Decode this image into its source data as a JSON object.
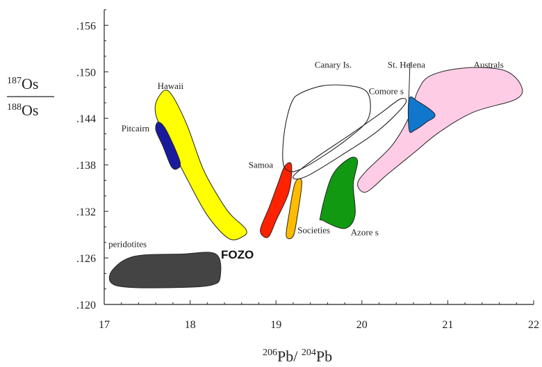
{
  "chart_data": {
    "type": "scatter",
    "title": "",
    "xlabel_parts": {
      "sup1": "206",
      "el1": "Pb",
      "sep": "/ ",
      "sup2": "204",
      "el2": "Pb"
    },
    "ylabel_parts": {
      "num_sup": "187",
      "num_el": "Os",
      "den_sup": "188",
      "den_el": "Os"
    },
    "xlim": [
      17,
      22
    ],
    "ylim": [
      0.12,
      0.158
    ],
    "x_ticks": [
      17,
      18,
      19,
      20,
      21,
      22
    ],
    "x_tick_labels": [
      "17",
      "18",
      "19",
      "20",
      "21",
      "22"
    ],
    "y_ticks": [
      0.12,
      0.126,
      0.132,
      0.138,
      0.144,
      0.15,
      0.156
    ],
    "y_tick_labels": [
      ".120",
      ".126",
      ".132",
      ".138",
      ".144",
      ".150",
      ".156"
    ],
    "grid": false,
    "fields": [
      {
        "name": "Hawaii",
        "color": "#ffff00",
        "outline": [
          [
            17.62,
            0.1465
          ],
          [
            17.75,
            0.1475
          ],
          [
            17.95,
            0.1435
          ],
          [
            18.15,
            0.1375
          ],
          [
            18.35,
            0.1335
          ],
          [
            18.48,
            0.1315
          ],
          [
            18.65,
            0.1297
          ],
          [
            18.62,
            0.1288
          ],
          [
            18.45,
            0.1285
          ],
          [
            18.2,
            0.1315
          ],
          [
            17.95,
            0.1365
          ],
          [
            17.72,
            0.1415
          ],
          [
            17.6,
            0.1445
          ]
        ]
      },
      {
        "name": "Pitcairn",
        "color": "#1a1a9e",
        "outline": [
          [
            17.63,
            0.1435
          ],
          [
            17.72,
            0.1425
          ],
          [
            17.88,
            0.1385
          ],
          [
            17.85,
            0.1375
          ],
          [
            17.78,
            0.1378
          ],
          [
            17.68,
            0.1405
          ],
          [
            17.6,
            0.1425
          ]
        ]
      },
      {
        "name": "peridotites",
        "color": "#444444",
        "outline": [
          [
            17.1,
            0.1245
          ],
          [
            17.35,
            0.1262
          ],
          [
            17.9,
            0.1265
          ],
          [
            18.3,
            0.1265
          ],
          [
            18.35,
            0.1235
          ],
          [
            18.25,
            0.1225
          ],
          [
            17.9,
            0.1222
          ],
          [
            17.3,
            0.1222
          ],
          [
            17.08,
            0.1228
          ]
        ]
      },
      {
        "name": "Samoa",
        "color": "#ff2200",
        "outline": [
          [
            19.1,
            0.1378
          ],
          [
            19.18,
            0.138
          ],
          [
            19.15,
            0.1345
          ],
          [
            19.0,
            0.1308
          ],
          [
            18.92,
            0.1288
          ],
          [
            18.85,
            0.1288
          ],
          [
            18.82,
            0.1298
          ],
          [
            18.92,
            0.1325
          ],
          [
            19.02,
            0.1355
          ]
        ]
      },
      {
        "name": "Societies",
        "color": "#ffbb00",
        "outline": [
          [
            19.22,
            0.1356
          ],
          [
            19.3,
            0.1358
          ],
          [
            19.25,
            0.1315
          ],
          [
            19.2,
            0.1288
          ],
          [
            19.12,
            0.1288
          ],
          [
            19.15,
            0.1315
          ]
        ]
      },
      {
        "name": "Azore s",
        "color": "#119911",
        "outline": [
          [
            19.65,
            0.1365
          ],
          [
            19.85,
            0.1388
          ],
          [
            19.95,
            0.1385
          ],
          [
            19.9,
            0.1355
          ],
          [
            19.92,
            0.1315
          ],
          [
            19.8,
            0.1298
          ],
          [
            19.55,
            0.1308
          ],
          [
            19.52,
            0.1315
          ]
        ]
      },
      {
        "name": "Australs",
        "color": "#ffcce5",
        "outline": [
          [
            20.8,
            0.1495
          ],
          [
            21.2,
            0.1505
          ],
          [
            21.65,
            0.1502
          ],
          [
            21.85,
            0.1483
          ],
          [
            21.8,
            0.1465
          ],
          [
            21.3,
            0.1448
          ],
          [
            20.9,
            0.1422
          ],
          [
            20.6,
            0.1395
          ],
          [
            20.3,
            0.1368
          ],
          [
            20.05,
            0.1345
          ],
          [
            19.95,
            0.1355
          ],
          [
            20.05,
            0.1372
          ],
          [
            20.35,
            0.1405
          ],
          [
            20.55,
            0.1442
          ],
          [
            20.65,
            0.1475
          ]
        ]
      },
      {
        "name": "St. Helena",
        "color": "#1177cc",
        "outline": [
          [
            20.55,
            0.1465
          ],
          [
            20.65,
            0.1462
          ],
          [
            20.85,
            0.1445
          ],
          [
            20.75,
            0.1435
          ],
          [
            20.62,
            0.1425
          ],
          [
            20.55,
            0.1425
          ]
        ]
      },
      {
        "name": "Canary Is.",
        "color": "none",
        "outline": [
          [
            19.28,
            0.1472
          ],
          [
            19.55,
            0.1482
          ],
          [
            19.85,
            0.1482
          ],
          [
            20.05,
            0.1475
          ],
          [
            20.1,
            0.1455
          ],
          [
            20.05,
            0.1435
          ],
          [
            19.85,
            0.1415
          ],
          [
            19.6,
            0.1395
          ],
          [
            19.3,
            0.1375
          ],
          [
            19.15,
            0.1372
          ],
          [
            19.08,
            0.1385
          ],
          [
            19.1,
            0.1425
          ],
          [
            19.18,
            0.146
          ]
        ]
      },
      {
        "name": "Comore s",
        "color": "none",
        "outline": [
          [
            19.35,
            0.1365
          ],
          [
            19.8,
            0.1395
          ],
          [
            20.2,
            0.1425
          ],
          [
            20.5,
            0.1458
          ],
          [
            20.45,
            0.1465
          ],
          [
            20.2,
            0.1445
          ],
          [
            19.85,
            0.1418
          ],
          [
            19.45,
            0.1388
          ],
          [
            19.2,
            0.1365
          ]
        ]
      }
    ],
    "labels": [
      {
        "text": "Hawaii",
        "x": 17.62,
        "y": 0.1478
      },
      {
        "text": "Pitcairn",
        "x": 17.2,
        "y": 0.1423
      },
      {
        "text": "peridotites",
        "x": 17.05,
        "y": 0.1274
      },
      {
        "text": "Samoa",
        "x": 18.68,
        "y": 0.1376
      },
      {
        "text": "Societies",
        "x": 19.25,
        "y": 0.1292
      },
      {
        "text": "Azore s",
        "x": 19.87,
        "y": 0.1289
      },
      {
        "text": "Canary Is.",
        "x": 19.45,
        "y": 0.1505
      },
      {
        "text": "Comore s",
        "x": 20.08,
        "y": 0.1471
      },
      {
        "text": "St. Helena",
        "x": 20.3,
        "y": 0.1505
      },
      {
        "text": "Australs",
        "x": 21.3,
        "y": 0.1505
      }
    ],
    "annotations": [
      {
        "text": "FOZO",
        "x": 18.55,
        "y": 0.1259
      }
    ]
  }
}
